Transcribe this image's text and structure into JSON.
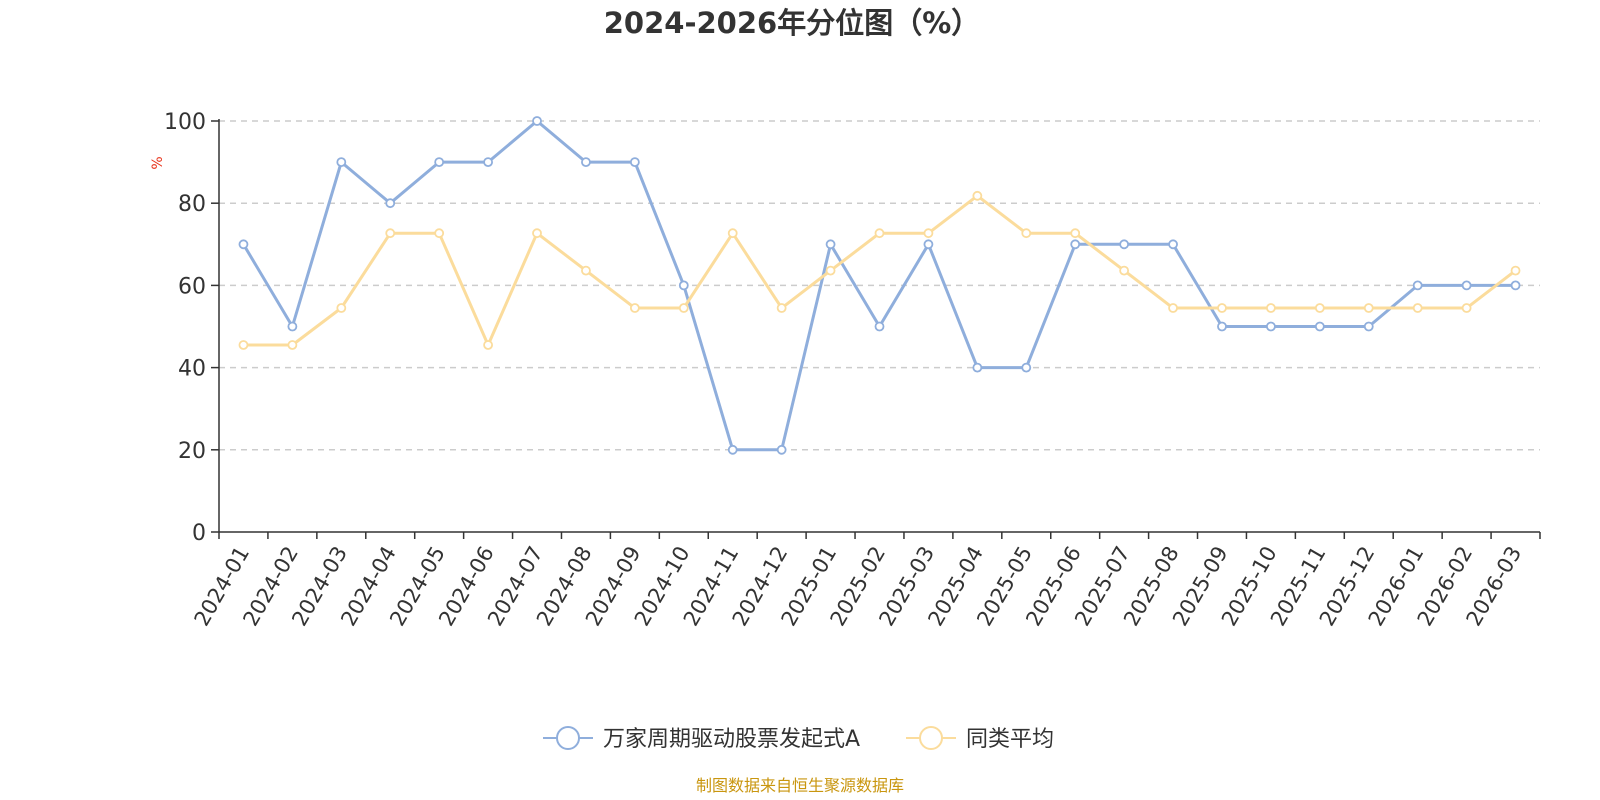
{
  "chart_data": {
    "type": "line",
    "title": "2024-2026年分位图（%）",
    "xlabel": "",
    "ylabel": "%",
    "ylim": [
      0,
      100
    ],
    "yticks": [
      "0",
      "20",
      "40",
      "60",
      "80",
      "100"
    ],
    "grid": true,
    "categories": [
      "2024-01",
      "2024-02",
      "2024-03",
      "2024-04",
      "2024-05",
      "2024-06",
      "2024-07",
      "2024-08",
      "2024-09",
      "2024-10",
      "2024-11",
      "2024-12",
      "2025-01",
      "2025-02",
      "2025-03",
      "2025-04",
      "2025-05",
      "2025-06",
      "2025-07",
      "2025-08",
      "2025-09",
      "2025-10",
      "2025-11",
      "2025-12",
      "2026-01",
      "2026-02",
      "2026-03"
    ],
    "series": [
      {
        "name": "万家周期驱动股票发起式A",
        "color": "#8faedc",
        "values": [
          70,
          50,
          90,
          80,
          90,
          90,
          100,
          90,
          90,
          60,
          20,
          20,
          70,
          50,
          70,
          40,
          40,
          70,
          70,
          70,
          50,
          50,
          50,
          50,
          60,
          60,
          60
        ]
      },
      {
        "name": "同类平均",
        "color": "#fbdc9c",
        "values": [
          45.5,
          45.5,
          54.5,
          72.7,
          72.7,
          45.5,
          72.7,
          63.6,
          54.5,
          54.5,
          72.7,
          54.5,
          63.6,
          72.7,
          72.7,
          81.8,
          72.7,
          72.7,
          63.6,
          54.5,
          54.5,
          54.5,
          54.5,
          54.5,
          54.5,
          54.5,
          63.6
        ]
      }
    ],
    "legend_position": "bottom-center"
  },
  "colors": {
    "axis": "#333333",
    "grid": "#cccccc",
    "ylabel": "#e8341c",
    "source": "#c9960f"
  },
  "source_text": "制图数据来自恒生聚源数据库"
}
